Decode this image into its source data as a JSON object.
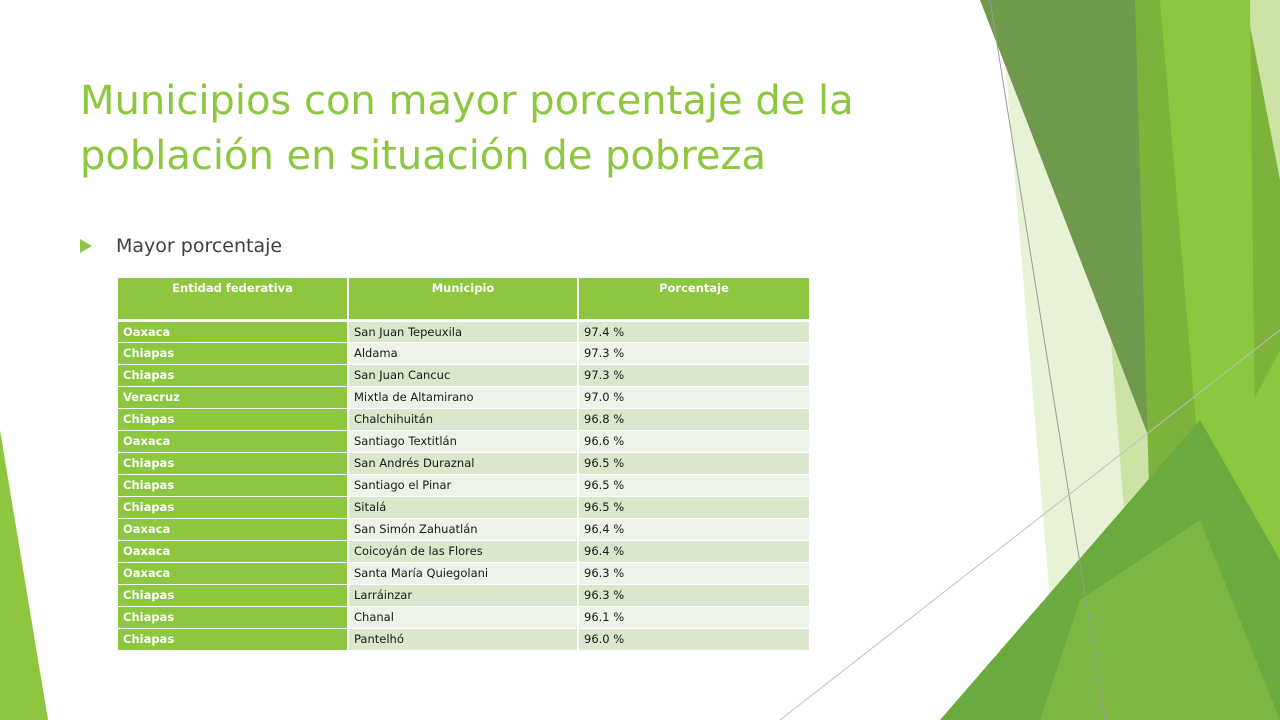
{
  "slide": {
    "title": "Municipios con mayor porcentaje de la población en situación de pobreza",
    "bullet": "Mayor porcentaje"
  },
  "table": {
    "headers": [
      "Entidad federativa",
      "Municipio",
      "Porcentaje"
    ],
    "rows": [
      [
        "Oaxaca",
        "San Juan Tepeuxila",
        "97.4 %"
      ],
      [
        "Chiapas",
        "Aldama",
        "97.3 %"
      ],
      [
        "Chiapas",
        "San Juan Cancuc",
        "97.3 %"
      ],
      [
        "Veracruz",
        "Mixtla de Altamirano",
        "97.0 %"
      ],
      [
        "Chiapas",
        "Chalchihuitán",
        "96.8 %"
      ],
      [
        "Oaxaca",
        "Santiago Textitlán",
        "96.6 %"
      ],
      [
        "Chiapas",
        "San Andrés Duraznal",
        "96.5 %"
      ],
      [
        "Chiapas",
        "Santiago el Pinar",
        "96.5 %"
      ],
      [
        "Chiapas",
        "Sitalá",
        "96.5 %"
      ],
      [
        "Oaxaca",
        "San Simón Zahuatlán",
        "96.4 %"
      ],
      [
        "Oaxaca",
        "Coicoyán de las Flores",
        "96.4 %"
      ],
      [
        "Oaxaca",
        "Santa María Quiegolani",
        "96.3 %"
      ],
      [
        "Chiapas",
        "Larráinzar",
        "96.3 %"
      ],
      [
        "Chiapas",
        "Chanal",
        "96.1 %"
      ],
      [
        "Chiapas",
        "Pantelhó",
        "96.0 %"
      ]
    ]
  },
  "colors": {
    "accent": "#8dc63f",
    "title": "#8dc63f",
    "row_odd": "#d9e7cd",
    "row_even": "#edf3e7"
  }
}
